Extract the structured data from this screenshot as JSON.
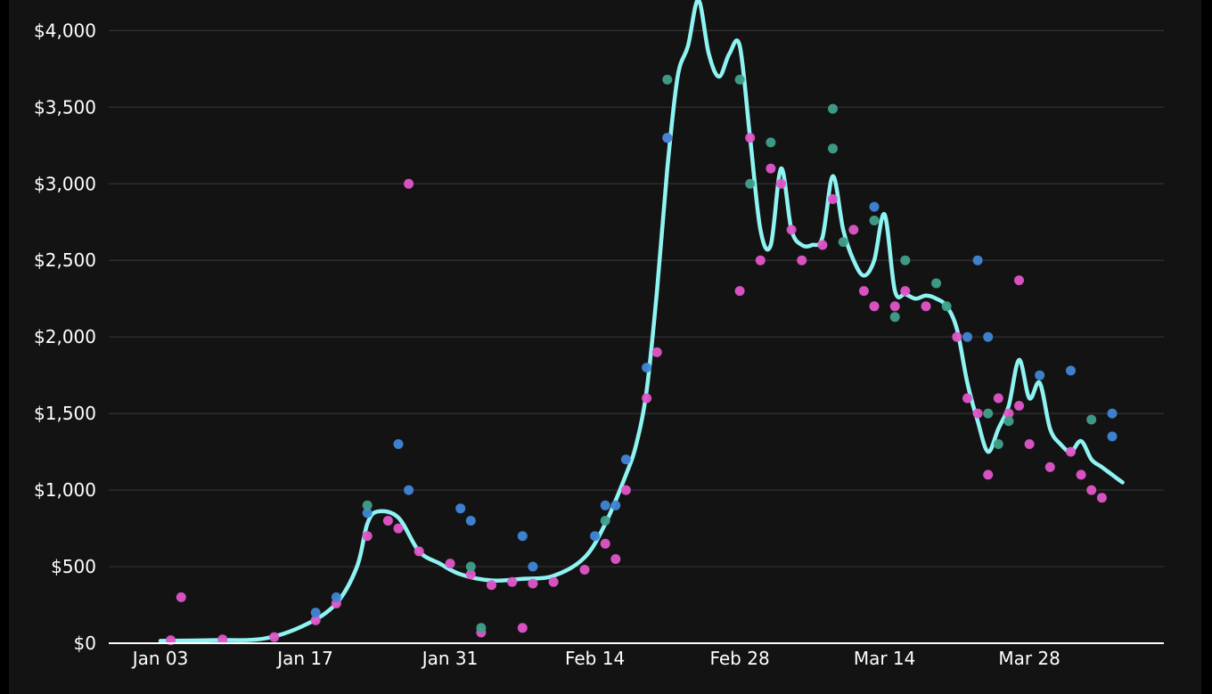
{
  "chart_data": {
    "type": "scatter",
    "title": "",
    "xlabel": "",
    "ylabel": "",
    "grid": true,
    "legend": "none",
    "x_range": [
      "2021-12-29",
      "2022-04-10"
    ],
    "y_range": [
      0,
      4200
    ],
    "x_ticks": [
      "Jan 03",
      "Jan 17",
      "Jan 31",
      "Feb 14",
      "Feb 28",
      "Mar 14",
      "Mar 28"
    ],
    "y_ticks": [
      "$0",
      "$500",
      "$1,000",
      "$1,500",
      "$2,000",
      "$2,500",
      "$3,000",
      "$3,500",
      "$4,000"
    ],
    "colors": {
      "background": "#141314",
      "grid": "#333333",
      "axis": "#ffffff",
      "line": "#8ef4f2",
      "points_pink": "#e055c8",
      "points_blue": "#3f86d6",
      "points_green": "#3fa08a"
    },
    "series": [
      {
        "kind": "line",
        "color": "#8ef4f2",
        "x": [
          "2022-01-03",
          "2022-01-08",
          "2022-01-13",
          "2022-01-17",
          "2022-01-20",
          "2022-01-22",
          "2022-01-23",
          "2022-01-24",
          "2022-01-26",
          "2022-01-28",
          "2022-01-30",
          "2022-02-01",
          "2022-02-04",
          "2022-02-07",
          "2022-02-10",
          "2022-02-13",
          "2022-02-15",
          "2022-02-17",
          "2022-02-18",
          "2022-02-19",
          "2022-02-20",
          "2022-02-21",
          "2022-02-22",
          "2022-02-23",
          "2022-02-24",
          "2022-02-25",
          "2022-02-26",
          "2022-02-27",
          "2022-02-28",
          "2022-03-01",
          "2022-03-02",
          "2022-03-03",
          "2022-03-04",
          "2022-03-05",
          "2022-03-06",
          "2022-03-07",
          "2022-03-08",
          "2022-03-09",
          "2022-03-10",
          "2022-03-11",
          "2022-03-12",
          "2022-03-13",
          "2022-03-14",
          "2022-03-15",
          "2022-03-16",
          "2022-03-17",
          "2022-03-18",
          "2022-03-19",
          "2022-03-20",
          "2022-03-21",
          "2022-03-22",
          "2022-03-23",
          "2022-03-24",
          "2022-03-25",
          "2022-03-26",
          "2022-03-27",
          "2022-03-28",
          "2022-03-29",
          "2022-03-30",
          "2022-03-31",
          "2022-04-01",
          "2022-04-02",
          "2022-04-03",
          "2022-04-04",
          "2022-04-05",
          "2022-04-06"
        ],
        "y": [
          15,
          20,
          30,
          120,
          260,
          500,
          780,
          860,
          820,
          600,
          520,
          450,
          410,
          420,
          440,
          560,
          780,
          1100,
          1300,
          1650,
          2300,
          3100,
          3700,
          3900,
          4200,
          3850,
          3700,
          3850,
          3900,
          3300,
          2700,
          2600,
          3100,
          2700,
          2600,
          2600,
          2650,
          3050,
          2700,
          2500,
          2400,
          2500,
          2800,
          2300,
          2280,
          2250,
          2270,
          2250,
          2200,
          2050,
          1700,
          1450,
          1250,
          1400,
          1550,
          1850,
          1600,
          1700,
          1400,
          1300,
          1250,
          1320,
          1200,
          1150,
          1100,
          1050
        ]
      },
      {
        "kind": "points",
        "color": "#e055c8",
        "x": [
          "2022-01-04",
          "2022-01-09",
          "2022-01-14",
          "2022-01-18",
          "2022-01-20",
          "2022-01-23",
          "2022-01-25",
          "2022-01-26",
          "2022-01-28",
          "2022-01-31",
          "2022-02-02",
          "2022-02-04",
          "2022-02-06",
          "2022-02-08",
          "2022-02-10",
          "2022-02-13",
          "2022-02-15",
          "2022-02-17",
          "2022-02-19",
          "2022-02-20",
          "2022-02-21",
          "2022-03-01",
          "2022-03-02",
          "2022-03-03",
          "2022-03-04",
          "2022-03-05",
          "2022-03-06",
          "2022-03-08",
          "2022-03-09",
          "2022-03-11",
          "2022-03-12",
          "2022-03-13",
          "2022-03-15",
          "2022-03-16",
          "2022-03-18",
          "2022-03-21",
          "2022-03-22",
          "2022-03-23",
          "2022-03-24",
          "2022-03-25",
          "2022-03-26",
          "2022-03-27",
          "2022-03-28",
          "2022-03-30",
          "2022-04-01",
          "2022-04-02",
          "2022-04-03",
          "2022-04-04",
          "2022-01-05",
          "2022-01-27",
          "2022-02-03",
          "2022-02-07",
          "2022-02-16",
          "2022-02-28",
          "2022-03-27"
        ],
        "y": [
          20,
          25,
          40,
          150,
          260,
          700,
          800,
          750,
          600,
          520,
          450,
          380,
          400,
          390,
          400,
          480,
          650,
          1000,
          1600,
          1900,
          3300,
          3300,
          2500,
          3100,
          3000,
          2700,
          2500,
          2600,
          2900,
          2700,
          2300,
          2200,
          2200,
          2300,
          2200,
          2000,
          1600,
          1500,
          1100,
          1600,
          1500,
          1550,
          1300,
          1150,
          1250,
          1100,
          1000,
          950,
          300,
          3000,
          70,
          100,
          550,
          2300,
          2370
        ]
      },
      {
        "kind": "points",
        "color": "#3f86d6",
        "x": [
          "2022-01-18",
          "2022-01-20",
          "2022-01-23",
          "2022-01-26",
          "2022-01-27",
          "2022-02-01",
          "2022-02-02",
          "2022-02-07",
          "2022-02-08",
          "2022-02-14",
          "2022-02-15",
          "2022-02-16",
          "2022-02-17",
          "2022-02-19",
          "2022-02-21",
          "2022-03-13",
          "2022-03-22",
          "2022-03-23",
          "2022-03-24",
          "2022-03-29",
          "2022-04-01",
          "2022-04-05",
          "2022-04-05"
        ],
        "y": [
          200,
          300,
          850,
          1300,
          1000,
          880,
          800,
          700,
          500,
          700,
          900,
          900,
          1200,
          1800,
          3300,
          2850,
          2000,
          2500,
          2000,
          1750,
          1780,
          1500,
          1350
        ]
      },
      {
        "kind": "points",
        "color": "#3fa08a",
        "x": [
          "2022-01-23",
          "2022-02-02",
          "2022-02-03",
          "2022-02-15",
          "2022-02-21",
          "2022-02-28",
          "2022-03-01",
          "2022-03-03",
          "2022-03-09",
          "2022-03-09",
          "2022-03-10",
          "2022-03-13",
          "2022-03-15",
          "2022-03-16",
          "2022-03-19",
          "2022-03-20",
          "2022-03-24",
          "2022-03-25",
          "2022-03-26",
          "2022-04-03"
        ],
        "y": [
          900,
          500,
          100,
          800,
          3680,
          3680,
          3000,
          3270,
          3490,
          3230,
          2620,
          2760,
          2130,
          2500,
          2350,
          2200,
          1500,
          1300,
          1450,
          1460
        ]
      }
    ]
  }
}
